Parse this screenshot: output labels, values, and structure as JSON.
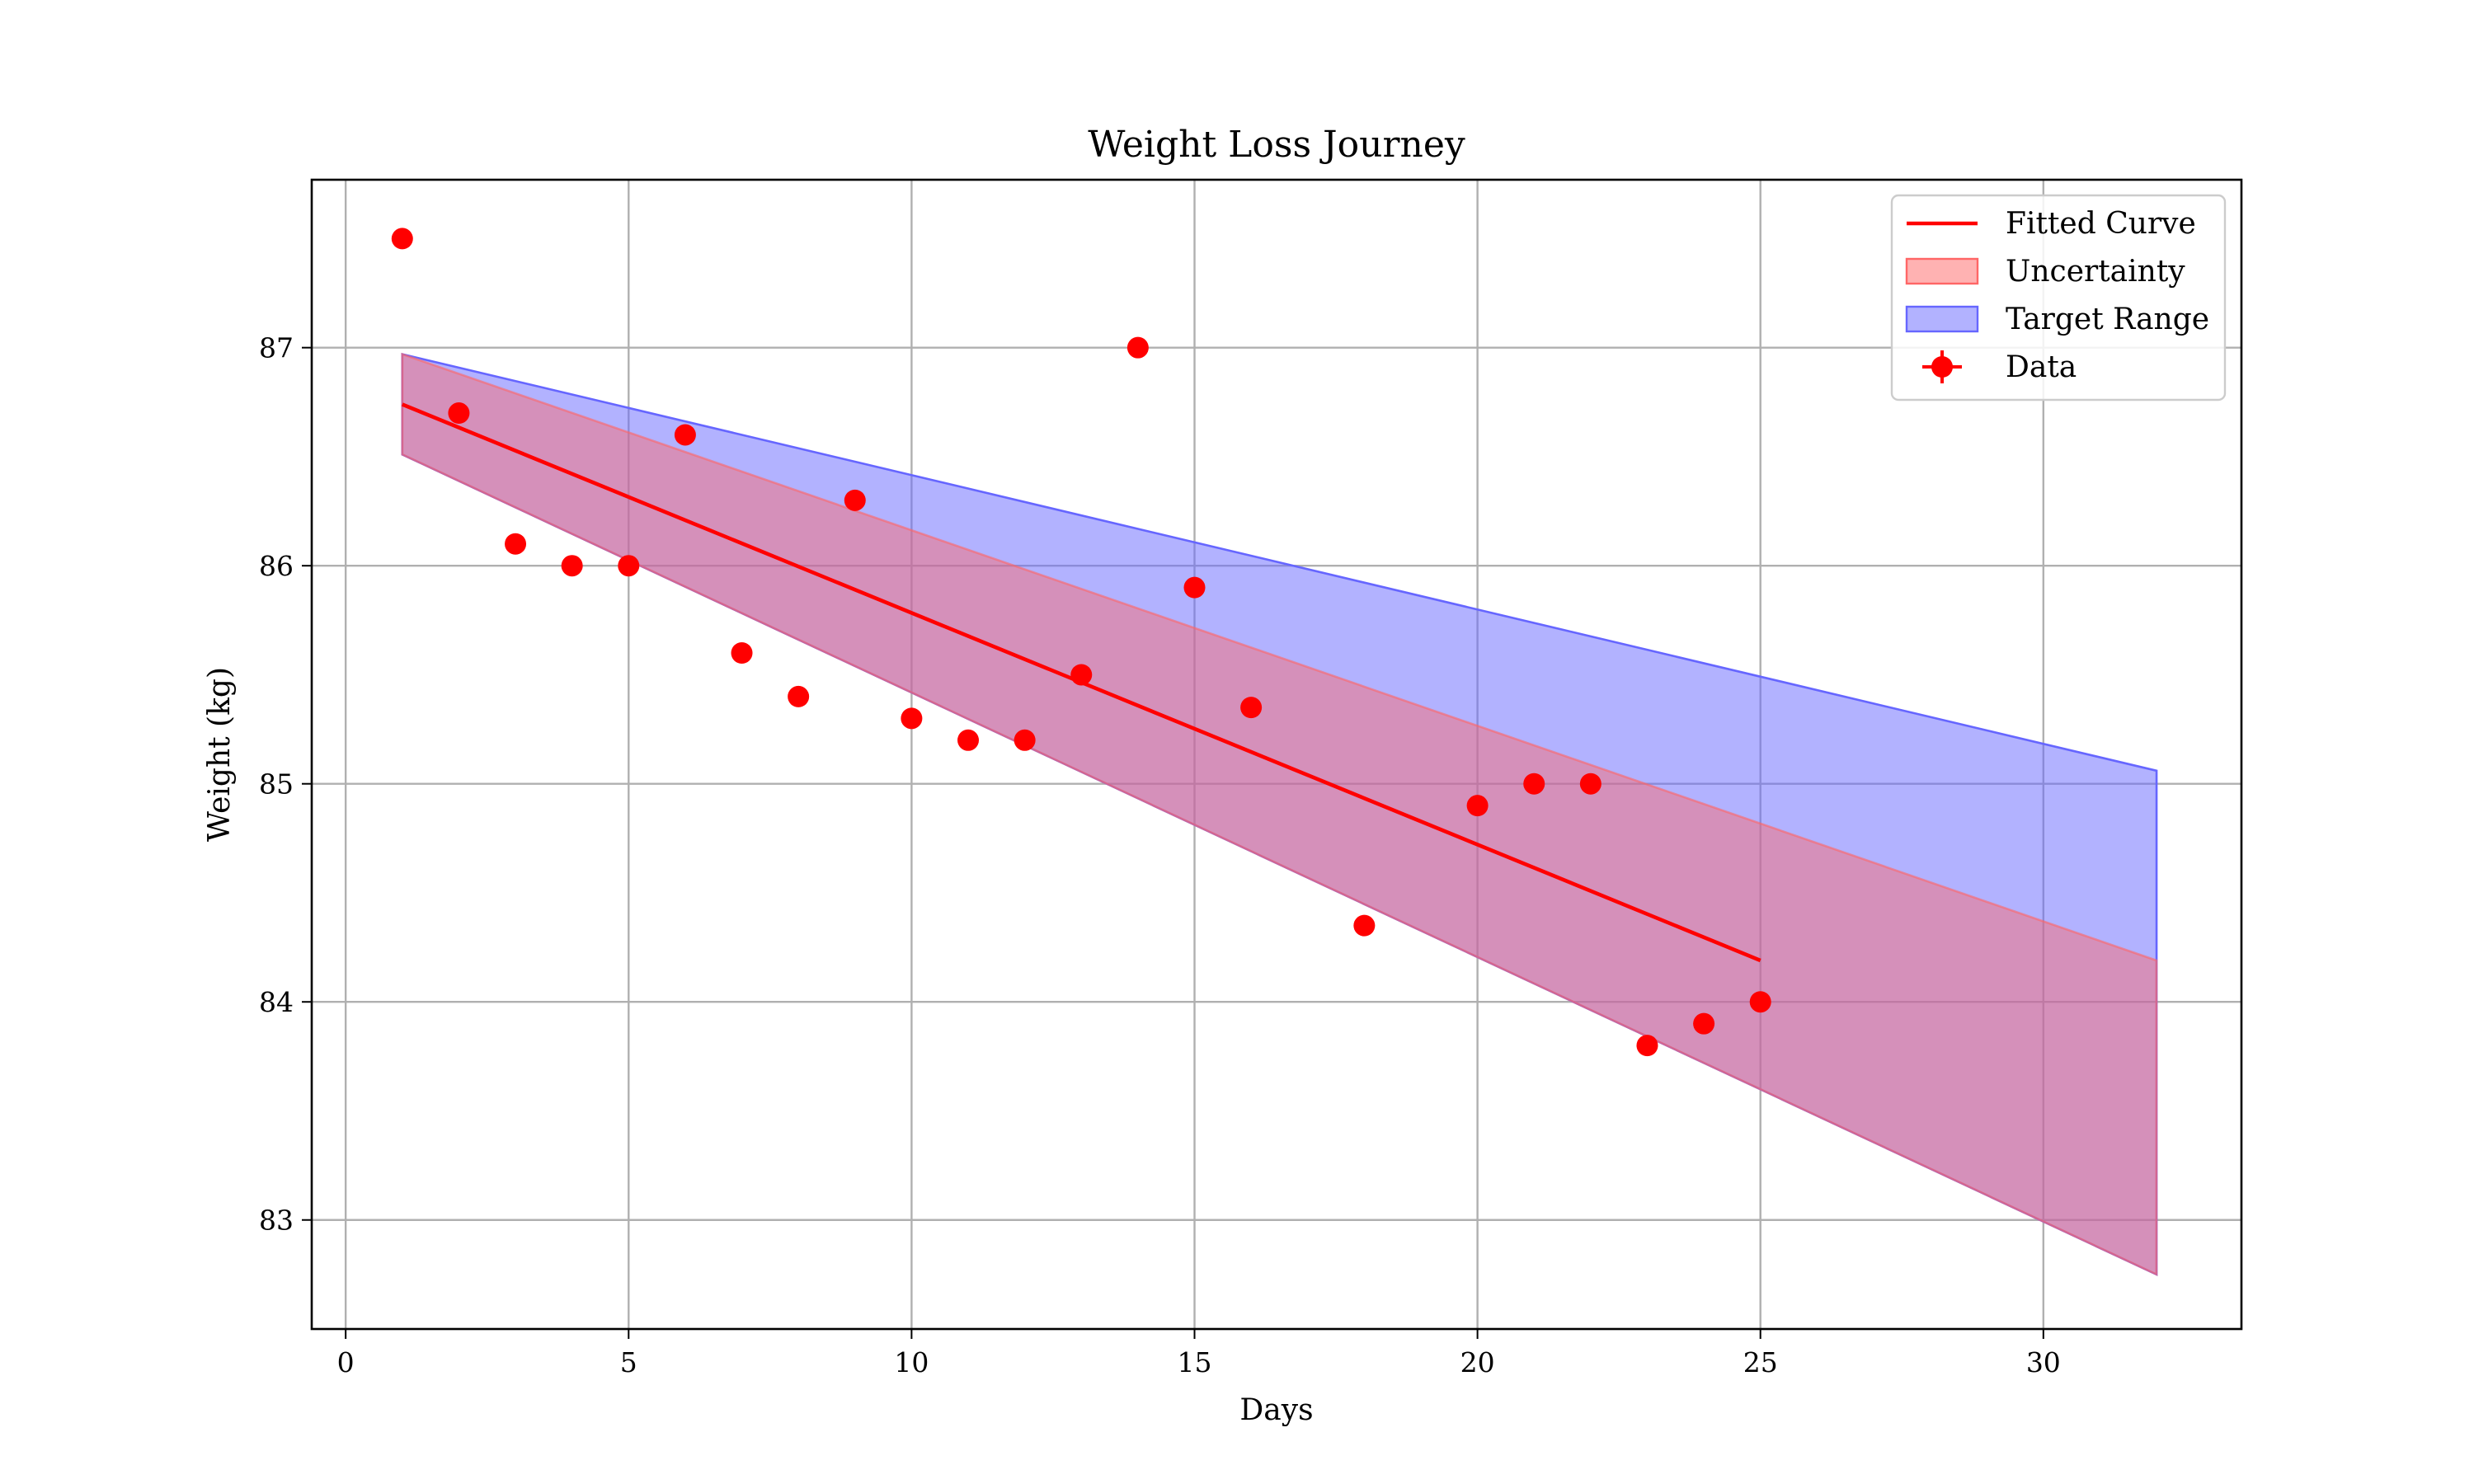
{
  "chart_data": {
    "type": "scatter",
    "title": "Weight Loss Journey",
    "xlabel": "Days",
    "ylabel": "Weight (kg)",
    "xlim": [
      -0.6,
      33.5
    ],
    "ylim": [
      82.5,
      87.77
    ],
    "xticks": [
      0,
      5,
      10,
      15,
      20,
      25,
      30
    ],
    "yticks": [
      83,
      84,
      85,
      86,
      87
    ],
    "grid": true,
    "legend_position": "top-right",
    "series": [
      {
        "name": "Data",
        "kind": "scatter",
        "color": "#ff0000",
        "points": [
          {
            "x": 1,
            "y": 87.5
          },
          {
            "x": 2,
            "y": 86.7
          },
          {
            "x": 3,
            "y": 86.1
          },
          {
            "x": 4,
            "y": 86.0
          },
          {
            "x": 5,
            "y": 86.0
          },
          {
            "x": 6,
            "y": 86.6
          },
          {
            "x": 7,
            "y": 85.6
          },
          {
            "x": 8,
            "y": 85.4
          },
          {
            "x": 9,
            "y": 86.3
          },
          {
            "x": 10,
            "y": 85.3
          },
          {
            "x": 11,
            "y": 85.2
          },
          {
            "x": 12,
            "y": 85.2
          },
          {
            "x": 13,
            "y": 85.5
          },
          {
            "x": 14,
            "y": 87.0
          },
          {
            "x": 15,
            "y": 85.9
          },
          {
            "x": 16,
            "y": 85.35
          },
          {
            "x": 18,
            "y": 84.35
          },
          {
            "x": 20,
            "y": 84.9
          },
          {
            "x": 21,
            "y": 85.0
          },
          {
            "x": 22,
            "y": 85.0
          },
          {
            "x": 23,
            "y": 83.8
          },
          {
            "x": 24,
            "y": 83.9
          },
          {
            "x": 25,
            "y": 84.0
          }
        ]
      },
      {
        "name": "Fitted Curve",
        "kind": "line",
        "color": "#ff0000",
        "points": [
          {
            "x": 1,
            "y": 86.74
          },
          {
            "x": 25,
            "y": 84.19
          }
        ]
      },
      {
        "name": "Uncertainty",
        "kind": "band",
        "color": "#ff6666",
        "upper": [
          {
            "x": 1,
            "y": 86.97
          },
          {
            "x": 32,
            "y": 84.19
          }
        ],
        "lower": [
          {
            "x": 1,
            "y": 86.51
          },
          {
            "x": 32,
            "y": 82.75
          }
        ]
      },
      {
        "name": "Target Range",
        "kind": "band",
        "color": "#6666ff",
        "upper": [
          {
            "x": 1,
            "y": 86.97
          },
          {
            "x": 32,
            "y": 85.06
          }
        ],
        "lower": [
          {
            "x": 1,
            "y": 86.51
          },
          {
            "x": 32,
            "y": 82.75
          }
        ]
      }
    ]
  }
}
